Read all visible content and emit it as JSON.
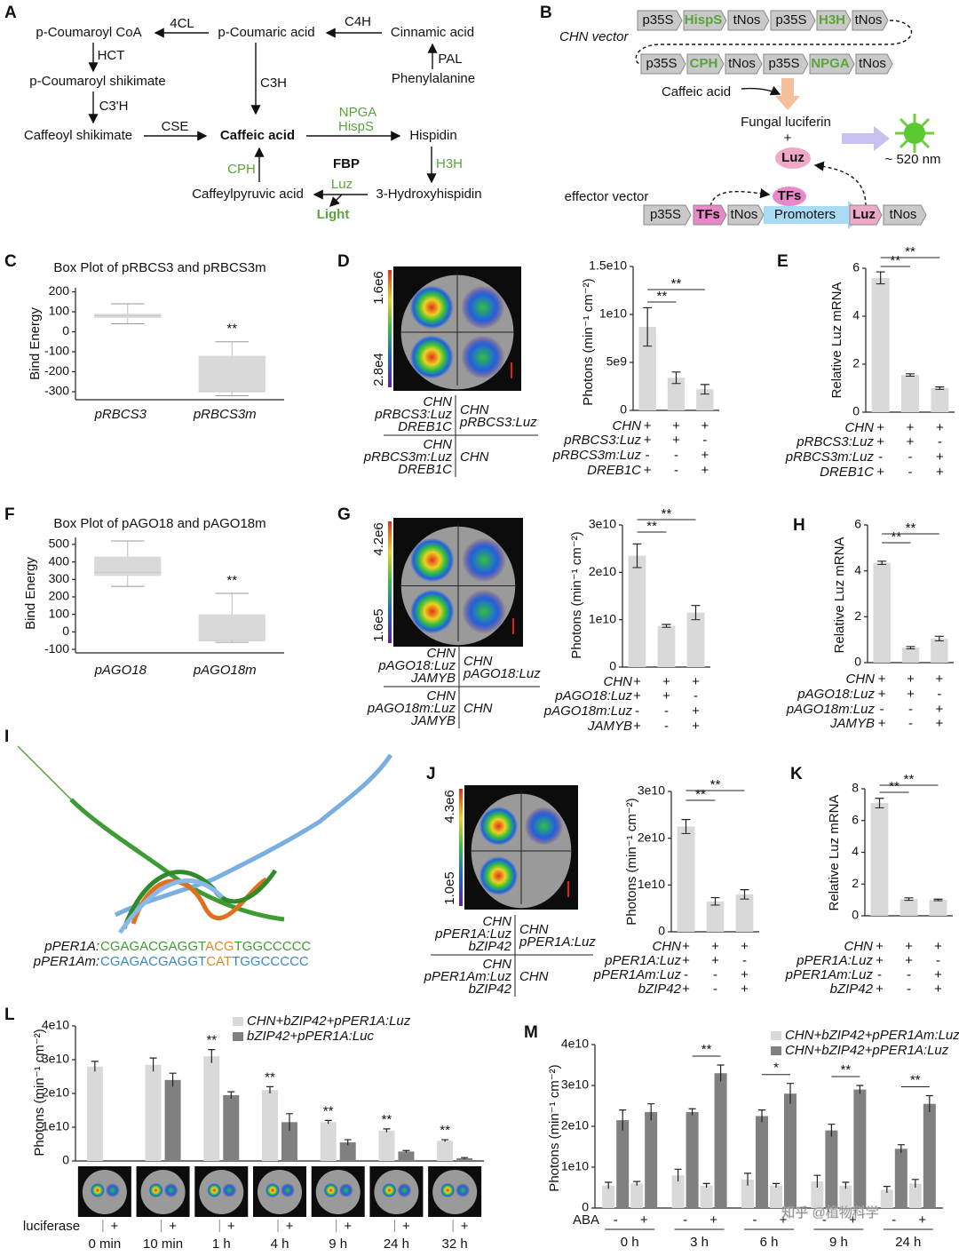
{
  "figure": {
    "labels": [
      "A",
      "B",
      "C",
      "D",
      "E",
      "F",
      "G",
      "H",
      "I",
      "J",
      "K",
      "L",
      "M"
    ]
  },
  "pathway": {
    "nodes": [
      "p-Coumaroyl CoA",
      "p-Coumaric acid",
      "Cinnamic acid",
      "Phenylalanine",
      "p-Coumaroyl shikimate",
      "Caffeoyl shikimate",
      "Caffeic acid",
      "Hispidin",
      "3-Hydroxyhispidin",
      "Caffeylpyruvic acid"
    ],
    "enzymes": [
      "4CL",
      "C4H",
      "PAL",
      "HCT",
      "C3'H",
      "C3H",
      "CSE",
      "NPGA",
      "HispS",
      "H3H",
      "CPH",
      "Luz"
    ],
    "center": "FBP",
    "output": "Light"
  },
  "vector": {
    "chn_label": "CHN vector",
    "cassettes": [
      "p35S",
      "HispS",
      "tNos",
      "p35S",
      "H3H",
      "tNos",
      "p35S",
      "CPH",
      "tNos",
      "p35S",
      "NPGA",
      "tNos"
    ],
    "substrate": "Caffeic acid",
    "luciferin": "Fungal luciferin",
    "plus": "+",
    "enzyme": "Luz",
    "wavelength": "~ 520 nm",
    "effector_label": "effector vector",
    "effector": [
      "p35S",
      "TFs",
      "tNos",
      "Promoters",
      "Luz",
      "tNos"
    ],
    "tf": "TFs"
  },
  "structure": {
    "sequences": [
      {
        "name": "pPER1A:",
        "parts": [
          "CGAGACGAGGT",
          "ACG",
          "TGGCCCCC"
        ],
        "color": "#3f9b35",
        "highlight": "#e08a1e"
      },
      {
        "name": "pPER1Am:",
        "parts": [
          "CGAGACGAGGT",
          "CAT",
          "TGGCCCCC"
        ],
        "color": "#3a8ac0",
        "highlight": "#e08a1e"
      }
    ]
  },
  "leaf_panels": [
    {
      "scale": [
        "1.6e6",
        "2.8e4"
      ],
      "conditions": [
        [
          "CHN",
          "pRBCS3:Luz",
          "DREB1C"
        ],
        [
          "CHN",
          "pRBCS3:Luz"
        ],
        [
          "CHN",
          "pRBCS3m:Luz",
          "DREB1C"
        ],
        [
          "CHN"
        ]
      ]
    },
    {
      "scale": [
        "4.2e6",
        "1.6e5"
      ],
      "conditions": [
        [
          "CHN",
          "pAGO18:Luz",
          "JAMYB"
        ],
        [
          "CHN",
          "pAGO18:Luz"
        ],
        [
          "CHN",
          "pAGO18m:Luz",
          "JAMYB"
        ],
        [
          "CHN"
        ]
      ]
    },
    {
      "scale": [
        "4.3e6",
        "1.0e5"
      ],
      "conditions": [
        [
          "CHN",
          "pPER1A:Luz",
          "bZIP42"
        ],
        [
          "CHN",
          "pPER1A:Luz"
        ],
        [
          "CHN",
          "pPER1Am:Luz",
          "bZIP42"
        ],
        [
          "CHN"
        ]
      ]
    }
  ],
  "chart_data": [
    {
      "type": "box",
      "title": "Box Plot of pRBCS3 and pRBCS3m",
      "y_label": "Bind Energy",
      "categories": [
        "pRBCS3",
        "pRBCS3m"
      ],
      "boxes": [
        {
          "min": 40,
          "q1": 70,
          "median": 80,
          "q3": 90,
          "max": 140
        },
        {
          "min": -320,
          "q1": -300,
          "median": -300,
          "q3": -120,
          "max": -50
        }
      ],
      "annotations": [
        null,
        "**"
      ],
      "ylim": [
        -340,
        220
      ],
      "yticks": [
        -300,
        -200,
        -100,
        0,
        100,
        200
      ],
      "color": "#d9d9d9"
    },
    {
      "type": "bar",
      "y_label": "Photons (min⁻¹ cm⁻²)",
      "values": [
        8700000000,
        3400000000,
        2200000000
      ],
      "errors": [
        2000000000,
        600000000,
        500000000
      ],
      "rows": [
        {
          "name": "CHN",
          "signs": [
            "+",
            "+",
            "+"
          ]
        },
        {
          "name": "pRBCS3:Luz",
          "signs": [
            "+",
            "+",
            "-"
          ]
        },
        {
          "name": "pRBCS3m:Luz",
          "signs": [
            "-",
            "-",
            "+"
          ]
        },
        {
          "name": "DREB1C",
          "signs": [
            "+",
            "-",
            "+"
          ]
        }
      ],
      "significance": [
        "**",
        "**"
      ],
      "ylim": [
        0,
        15000000000
      ],
      "yticks": [
        0,
        {
          "value": 5000000000,
          "label": "5e9"
        },
        {
          "value": 10000000000,
          "label": "1e10"
        },
        {
          "value": 15000000000,
          "label": "1.5e10"
        }
      ],
      "color": "#d9d9d9"
    },
    {
      "type": "bar",
      "y_label": "Relative Luz mRNA",
      "values": [
        5.6,
        1.55,
        1.0
      ],
      "errors": [
        0.25,
        0.05,
        0.05
      ],
      "rows": [
        {
          "name": "CHN",
          "signs": [
            "+",
            "+",
            "+"
          ]
        },
        {
          "name": "pRBCS3:Luz",
          "signs": [
            "+",
            "+",
            "-"
          ]
        },
        {
          "name": "pRBCS3m:Luz",
          "signs": [
            "-",
            "-",
            "+"
          ]
        },
        {
          "name": "DREB1C",
          "signs": [
            "+",
            "-",
            "+"
          ]
        }
      ],
      "significance": [
        "**",
        "**"
      ],
      "ylim": [
        0,
        6
      ],
      "yticks": [
        0,
        2,
        4,
        6
      ],
      "color": "#d9d9d9"
    },
    {
      "type": "box",
      "title": "Box Plot of pAGO18 and pAGO18m",
      "y_label": "Bind Energy",
      "categories": [
        "pAGO18",
        "pAGO18m"
      ],
      "boxes": [
        {
          "min": 260,
          "q1": 320,
          "median": 340,
          "q3": 430,
          "max": 520
        },
        {
          "min": -60,
          "q1": -50,
          "median": -50,
          "q3": 100,
          "max": 220
        }
      ],
      "annotations": [
        null,
        "**"
      ],
      "ylim": [
        -120,
        540
      ],
      "yticks": [
        -100,
        0,
        100,
        200,
        300,
        400,
        500
      ],
      "color": "#d9d9d9"
    },
    {
      "type": "bar",
      "y_label": "Photons (min⁻¹ cm⁻²)",
      "values": [
        23500000000,
        8700000000,
        11500000000
      ],
      "errors": [
        2500000000,
        300000000,
        1500000000
      ],
      "rows": [
        {
          "name": "CHN",
          "signs": [
            "+",
            "+",
            "+"
          ]
        },
        {
          "name": "pAGO18:Luz",
          "signs": [
            "+",
            "+",
            "-"
          ]
        },
        {
          "name": "pAGO18m:Luz",
          "signs": [
            "-",
            "-",
            "+"
          ]
        },
        {
          "name": "JAMYB",
          "signs": [
            "+",
            "-",
            "+"
          ]
        }
      ],
      "significance": [
        "**",
        "**"
      ],
      "ylim": [
        0,
        30000000000
      ],
      "yticks": [
        0,
        {
          "value": 10000000000,
          "label": "1e10"
        },
        {
          "value": 20000000000,
          "label": "2e10"
        },
        {
          "value": 30000000000,
          "label": "3e10"
        }
      ],
      "color": "#d9d9d9"
    },
    {
      "type": "bar",
      "y_label": "Relative Luz mRNA",
      "values": [
        4.35,
        0.65,
        1.05
      ],
      "errors": [
        0.07,
        0.05,
        0.1
      ],
      "rows": [
        {
          "name": "CHN",
          "signs": [
            "+",
            "+",
            "+"
          ]
        },
        {
          "name": "pAGO18:Luz",
          "signs": [
            "+",
            "+",
            "-"
          ]
        },
        {
          "name": "pAGO18m:Luz",
          "signs": [
            "-",
            "-",
            "+"
          ]
        },
        {
          "name": "JAMYB",
          "signs": [
            "+",
            "-",
            "+"
          ]
        }
      ],
      "significance": [
        "**",
        "**"
      ],
      "ylim": [
        0,
        6
      ],
      "yticks": [
        0,
        2,
        4,
        6
      ],
      "color": "#d9d9d9"
    },
    {
      "type": "bar",
      "y_label": "Photons (min⁻¹ cm⁻²)",
      "values": [
        22500000000,
        6500000000,
        8000000000
      ],
      "errors": [
        1500000000,
        800000000,
        1000000000
      ],
      "rows": [
        {
          "name": "CHN",
          "signs": [
            "+",
            "+",
            "+"
          ]
        },
        {
          "name": "pPER1A:Luz",
          "signs": [
            "+",
            "+",
            "-"
          ]
        },
        {
          "name": "pPER1Am:Luz",
          "signs": [
            "-",
            "-",
            "+"
          ]
        },
        {
          "name": "bZIP42",
          "signs": [
            "+",
            "-",
            "+"
          ]
        }
      ],
      "significance": [
        "**",
        "**"
      ],
      "ylim": [
        0,
        30000000000
      ],
      "yticks": [
        0,
        {
          "value": 10000000000,
          "label": "1e10"
        },
        {
          "value": 20000000000,
          "label": "2e10"
        },
        {
          "value": 30000000000,
          "label": "3e10"
        }
      ],
      "color": "#d9d9d9"
    },
    {
      "type": "bar",
      "y_label": "Relative Luz mRNA",
      "values": [
        7.1,
        1.05,
        1.0
      ],
      "errors": [
        0.3,
        0.08,
        0.05
      ],
      "rows": [
        {
          "name": "CHN",
          "signs": [
            "+",
            "+",
            "+"
          ]
        },
        {
          "name": "pPER1A:Luz",
          "signs": [
            "+",
            "+",
            "-"
          ]
        },
        {
          "name": "pPER1Am:Luz",
          "signs": [
            "-",
            "-",
            "+"
          ]
        },
        {
          "name": "bZIP42",
          "signs": [
            "+",
            "-",
            "+"
          ]
        }
      ],
      "significance": [
        "**",
        "**"
      ],
      "ylim": [
        0,
        8
      ],
      "yticks": [
        0,
        2,
        4,
        6,
        8
      ],
      "color": "#d9d9d9"
    },
    {
      "type": "grouped_bar",
      "y_label": "Photons (min⁻¹ cm⁻²)",
      "categories": [
        "0 min",
        "10 min",
        "1 h",
        "4 h",
        "9 h",
        "24 h",
        "32 h"
      ],
      "series": [
        {
          "name": "CHN+bZIP42+pPER1A:Luz",
          "color": "#d9d9d9",
          "values": [
            28000000000,
            28500000000,
            31000000000,
            21000000000,
            11500000000,
            9000000000,
            6000000000
          ],
          "errors": [
            1500000000,
            2000000000,
            2000000000,
            1000000000,
            500000000,
            500000000,
            300000000
          ]
        },
        {
          "name": "bZIP42+pPER1A:Luc",
          "color": "#808080",
          "values": [
            null,
            24000000000,
            19500000000,
            11500000000,
            5500000000,
            2800000000,
            800000000
          ],
          "errors": [
            null,
            2000000000,
            1000000000,
            2500000000,
            800000000,
            300000000,
            200000000
          ]
        }
      ],
      "annotations": [
        null,
        null,
        "**",
        "**",
        "**",
        "**",
        "**"
      ],
      "row": {
        "name": "luciferase",
        "signs": [
          "+",
          "+",
          "+",
          "+",
          "+",
          "+",
          "+"
        ]
      },
      "ylim": [
        0,
        40000000000
      ],
      "yticks": [
        0,
        {
          "value": 10000000000,
          "label": "1e10"
        },
        {
          "value": 20000000000,
          "label": "2e10"
        },
        {
          "value": 30000000000,
          "label": "3e10"
        },
        {
          "value": 40000000000,
          "label": "4e10"
        }
      ]
    },
    {
      "type": "paired_bar",
      "y_label": "Photons (min⁻¹ cm⁻²)",
      "categories": [
        "0 h",
        "3 h",
        "6 h",
        "9 h",
        "24 h"
      ],
      "series": [
        {
          "name": "CHN+bZIP42+pPER1Am:Luz",
          "color": "#d9d9d9",
          "values": [
            [
              5500000000,
              6000000000
            ],
            [
              8000000000,
              5500000000
            ],
            [
              7000000000,
              5500000000
            ],
            [
              6500000000,
              5500000000
            ],
            [
              4500000000,
              6000000000
            ]
          ],
          "errors": [
            [
              800000000,
              500000000
            ],
            [
              1500000000,
              500000000
            ],
            [
              1500000000,
              500000000
            ],
            [
              1500000000,
              800000000
            ],
            [
              800000000,
              1000000000
            ]
          ]
        },
        {
          "name": "CHN+bZIP42+pPER1A:Luz",
          "color": "#808080",
          "values": [
            [
              21500000000,
              23500000000
            ],
            [
              23500000000,
              33000000000
            ],
            [
              22500000000,
              28000000000
            ],
            [
              19000000000,
              29000000000
            ],
            [
              14500000000,
              25500000000
            ]
          ],
          "errors": [
            [
              2500000000,
              2000000000
            ],
            [
              800000000,
              2000000000
            ],
            [
              1500000000,
              2500000000
            ],
            [
              1500000000,
              1000000000
            ],
            [
              1000000000,
              2000000000
            ]
          ]
        }
      ],
      "annotations": [
        null,
        "**",
        "*",
        "**",
        "**"
      ],
      "row": {
        "name": "ABA",
        "signs": [
          "-",
          "+"
        ]
      },
      "ylim": [
        0,
        40000000000
      ],
      "yticks": [
        0,
        {
          "value": 10000000000,
          "label": "1e10"
        },
        {
          "value": 20000000000,
          "label": "2e10"
        },
        {
          "value": 30000000000,
          "label": "3e10"
        },
        {
          "value": 40000000000,
          "label": "4e10"
        }
      ]
    }
  ],
  "watermark": "知乎 @植物科学"
}
